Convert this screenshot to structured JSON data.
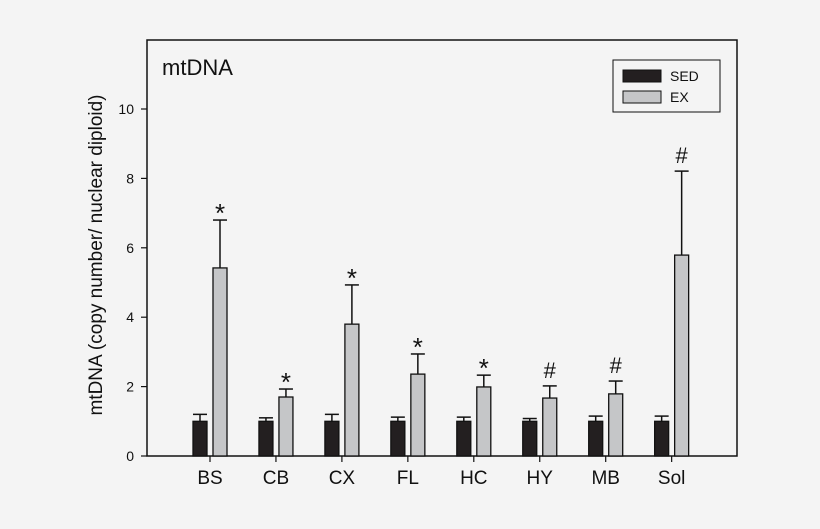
{
  "chart_data": {
    "type": "bar",
    "title": "mtDNA",
    "xlabel": "",
    "ylabel": "mtDNA (copy number/ nuclear diploid)",
    "ylim": [
      0,
      12
    ],
    "yticks": [
      "0",
      "2",
      "4",
      "6",
      "8",
      "10"
    ],
    "categories": [
      "BS",
      "CB",
      "CX",
      "FL",
      "HC",
      "HY",
      "MB",
      "Sol"
    ],
    "legend_position": "top-right",
    "series": [
      {
        "name": "SED",
        "color": "#231f20",
        "values": [
          1.0,
          1.0,
          1.0,
          1.0,
          1.0,
          1.0,
          1.0,
          1.0
        ],
        "error_upper": [
          1.2,
          1.1,
          1.2,
          1.12,
          1.12,
          1.08,
          1.15,
          1.15
        ]
      },
      {
        "name": "EX",
        "color": "#c5c6c8",
        "values": [
          5.42,
          1.7,
          3.8,
          2.36,
          1.99,
          1.67,
          1.79,
          5.79
        ],
        "error_upper": [
          6.8,
          1.93,
          4.93,
          2.94,
          2.33,
          2.02,
          2.16,
          8.21
        ]
      }
    ],
    "annotations": [
      "*",
      "*",
      "*",
      "*",
      "*",
      "#",
      "#",
      "#"
    ]
  }
}
